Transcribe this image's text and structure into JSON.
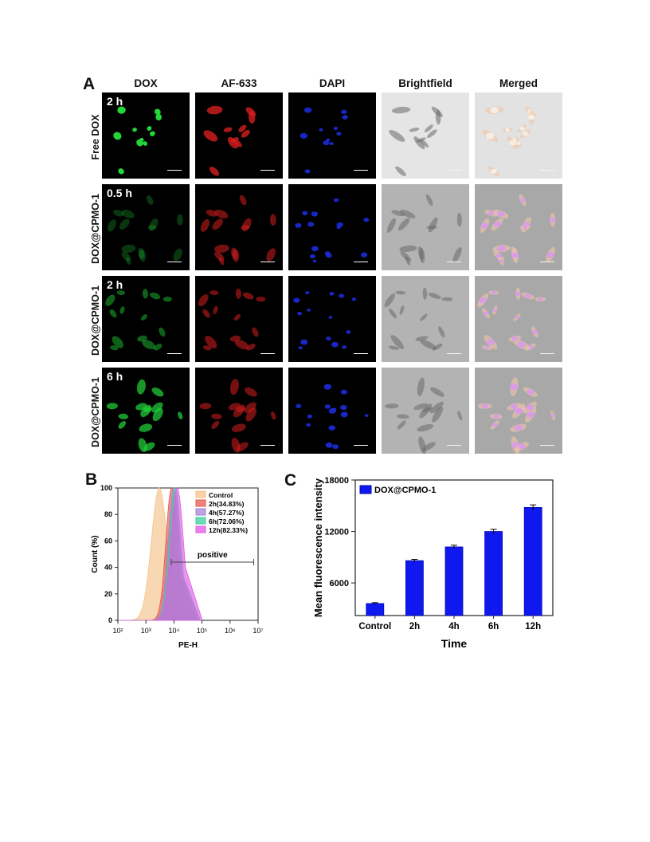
{
  "panelA": {
    "letter": "A",
    "columns": [
      "DOX",
      "AF-633",
      "DAPI",
      "Brightfield",
      "Merged"
    ],
    "rows": [
      {
        "label": "Free DOX",
        "time": "2 h",
        "dox_level": 1.0
      },
      {
        "label": "DOX@CPMO-1",
        "time": "0.5 h",
        "dox_level": 0.25
      },
      {
        "label": "DOX@CPMO-1",
        "time": "2 h",
        "dox_level": 0.45
      },
      {
        "label": "DOX@CPMO-1",
        "time": "6 h",
        "dox_level": 0.7
      }
    ],
    "colors": {
      "DOX": "#22d63a",
      "AF-633": "#d41e1e",
      "DAPI": "#1b2bd8",
      "Brightfield": "#bdbdbd",
      "Merged": "#e8b0d8"
    }
  },
  "panelB": {
    "letter": "B",
    "chart_data": {
      "type": "area",
      "xlabel": "PE-H",
      "ylabel": "Count (%)",
      "x_scale": "log",
      "xlim": [
        100,
        10000000
      ],
      "ylim": [
        0,
        100
      ],
      "x_ticks": [
        "10²",
        "10³",
        "10⁴",
        "10⁵",
        "10⁶",
        "10⁷"
      ],
      "y_ticks": [
        "0",
        "20",
        "40",
        "60",
        "80",
        "100"
      ],
      "gate_label": "positive",
      "gate_range": [
        8000,
        7000000
      ],
      "series": [
        {
          "name": "Control",
          "color": "#f5c28a",
          "peak": 3000,
          "width": 0.28
        },
        {
          "name": "2h(34.83%)",
          "color": "#e85a4f",
          "peak": 8200,
          "width": 0.2
        },
        {
          "name": "4h(57.27%)",
          "color": "#a783d6",
          "peak": 9800,
          "width": 0.2
        },
        {
          "name": "6h(72.06%)",
          "color": "#3fcf9c",
          "peak": 11000,
          "width": 0.2
        },
        {
          "name": "12h(82.33%)",
          "color": "#e25ae6",
          "peak": 13000,
          "width": 0.22
        }
      ]
    }
  },
  "panelC": {
    "letter": "C",
    "chart_data": {
      "type": "bar",
      "categories": [
        "Control",
        "2h",
        "4h",
        "6h",
        "12h"
      ],
      "values": [
        3600,
        8600,
        10200,
        12000,
        14800
      ],
      "errors": [
        100,
        150,
        200,
        250,
        300
      ],
      "series_name": "DOX@CPMO-1",
      "xlabel": "Time",
      "ylabel": "Mean fluorescence intensity",
      "ylim": [
        2200,
        18000
      ],
      "y_ticks": [
        "6000",
        "12000",
        "18000"
      ],
      "bar_color": "#1018f0"
    }
  }
}
